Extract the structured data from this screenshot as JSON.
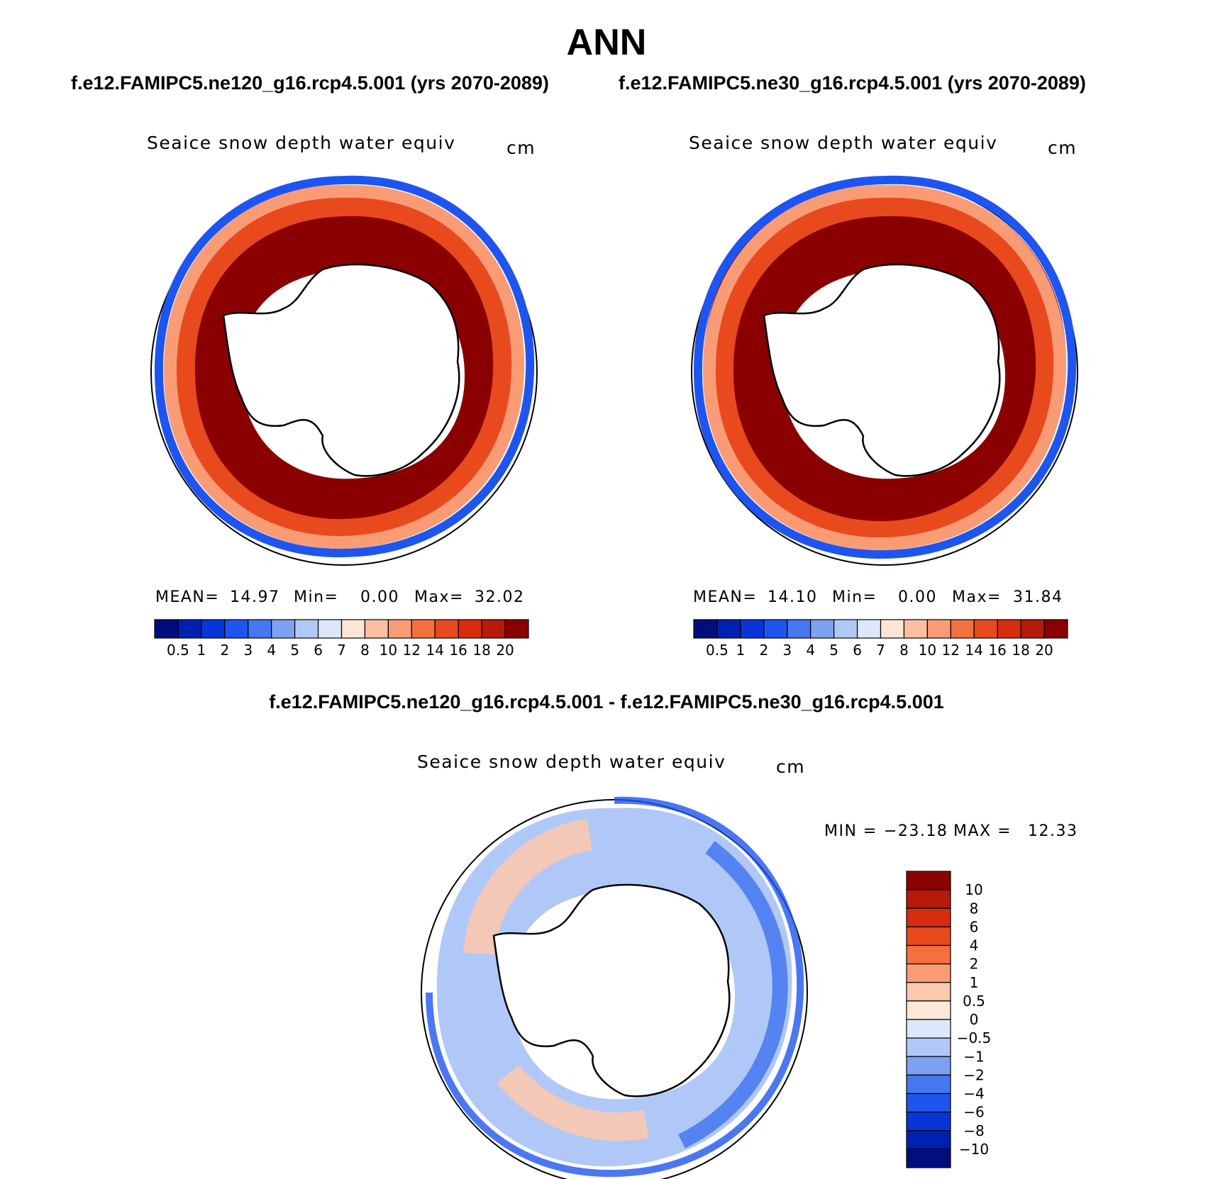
{
  "title": "ANN",
  "panels": [
    {
      "subtitle": "f.e12.FAMIPC5.ne120_g16.rcp4.5.001 (yrs 2070-2089)",
      "variable": "Seaice snow depth water equiv",
      "units": "cm",
      "stats": {
        "mean_label": "MEAN=",
        "mean": "14.97",
        "min_label": "Min=",
        "min": "0.00",
        "max_label": "Max=",
        "max": "32.02"
      }
    },
    {
      "subtitle": "f.e12.FAMIPC5.ne30_g16.rcp4.5.001 (yrs 2070-2089)",
      "variable": "Seaice snow depth water equiv",
      "units": "cm",
      "stats": {
        "mean_label": "MEAN=",
        "mean": "14.10",
        "min_label": "Min=",
        "min": "0.00",
        "max_label": "Max=",
        "max": "31.84"
      }
    }
  ],
  "difference": {
    "subtitle": "f.e12.FAMIPC5.ne120_g16.rcp4.5.001 - f.e12.FAMIPC5.ne30_g16.rcp4.5.001",
    "variable": "Seaice snow depth water equiv",
    "units": "cm",
    "minmax": {
      "min_label": "MIN =",
      "min": "−23.18",
      "max_label": "MAX =",
      "max": "12.33"
    }
  },
  "colorbar_main": {
    "labels": [
      "0.5",
      "1",
      "2",
      "3",
      "4",
      "5",
      "6",
      "7",
      "8",
      "10",
      "12",
      "14",
      "16",
      "18",
      "20"
    ],
    "colors": [
      "#000e7c",
      "#0020b0",
      "#0735d9",
      "#1e55f0",
      "#4577f0",
      "#7ea0f0",
      "#b0c8f8",
      "#dce8fa",
      "#fde5d5",
      "#fcc0a0",
      "#f99c76",
      "#f4703f",
      "#e84a1e",
      "#d82c0e",
      "#b51a0a",
      "#8a0000"
    ]
  },
  "colorbar_diff": {
    "labels": [
      "10",
      "8",
      "6",
      "4",
      "2",
      "1",
      "0.5",
      "0",
      "−0.5",
      "−1",
      "−2",
      "−4",
      "−6",
      "−8",
      "−10"
    ],
    "colors": [
      "#8a0000",
      "#b51a0a",
      "#d82c0e",
      "#e84a1e",
      "#f4703f",
      "#f99c76",
      "#fcc8ae",
      "#fde7d8",
      "#dce8fa",
      "#b0c8f8",
      "#7ea0f0",
      "#4577f0",
      "#1e55f0",
      "#0735d9",
      "#0020b0",
      "#000e7c"
    ]
  },
  "chart_data": [
    {
      "type": "heatmap",
      "title": "Seaice snow depth water equiv",
      "units": "cm",
      "case": "f.e12.FAMIPC5.ne120_g16.rcp4.5.001 (yrs 2070-2089)",
      "projection": "south polar stereographic",
      "levels": [
        0.5,
        1,
        2,
        3,
        4,
        5,
        6,
        7,
        8,
        10,
        12,
        14,
        16,
        18,
        20
      ],
      "mean": 14.97,
      "min": 0.0,
      "max": 32.02
    },
    {
      "type": "heatmap",
      "title": "Seaice snow depth water equiv",
      "units": "cm",
      "case": "f.e12.FAMIPC5.ne30_g16.rcp4.5.001 (yrs 2070-2089)",
      "projection": "south polar stereographic",
      "levels": [
        0.5,
        1,
        2,
        3,
        4,
        5,
        6,
        7,
        8,
        10,
        12,
        14,
        16,
        18,
        20
      ],
      "mean": 14.1,
      "min": 0.0,
      "max": 31.84
    },
    {
      "type": "heatmap",
      "title": "Seaice snow depth water equiv",
      "units": "cm",
      "case": "f.e12.FAMIPC5.ne120_g16.rcp4.5.001 - f.e12.FAMIPC5.ne30_g16.rcp4.5.001",
      "projection": "south polar stereographic",
      "levels": [
        -10,
        -8,
        -6,
        -4,
        -2,
        -1,
        -0.5,
        0,
        0.5,
        1,
        2,
        4,
        6,
        8,
        10
      ],
      "min": -23.18,
      "max": 12.33
    }
  ]
}
